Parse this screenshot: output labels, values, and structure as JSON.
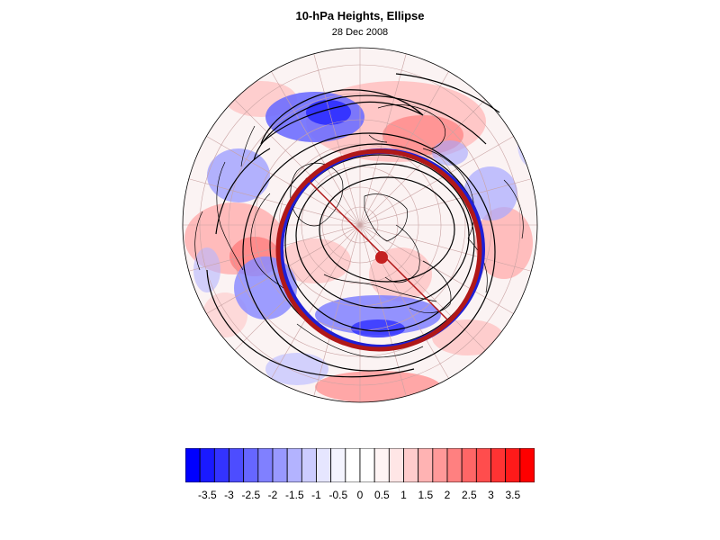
{
  "title": "10-hPa Heights, Ellipse",
  "subtitle": "28 Dec 2008",
  "map": {
    "projection": "polar stereographic (Northern Hemisphere)",
    "shading": "height anomaly, blue-white-red",
    "contours": "10-hPa geopotential height (black)",
    "ellipse_colors": [
      "#1f1fd6",
      "#b01818"
    ],
    "center_marker_color": "#c42020"
  },
  "colorbar": {
    "colors": [
      "#0000ff",
      "#1a1aff",
      "#3333ff",
      "#4d4dff",
      "#6666ff",
      "#8080ff",
      "#9999ff",
      "#b3b3ff",
      "#ccccff",
      "#e6e6ff",
      "#f4f4ff",
      "#ffffff",
      "#ffffff",
      "#fff4f4",
      "#ffe6e6",
      "#ffcccc",
      "#ffb3b3",
      "#ff9999",
      "#ff8080",
      "#ff6666",
      "#ff4d4d",
      "#ff3333",
      "#ff1a1a",
      "#ff0000"
    ],
    "labels": [
      "-3.5",
      "-3",
      "-2.5",
      "-2",
      "-1.5",
      "-1",
      "-0.5",
      "0",
      "0.5",
      "1",
      "1.5",
      "2",
      "2.5",
      "3",
      "3.5"
    ]
  }
}
